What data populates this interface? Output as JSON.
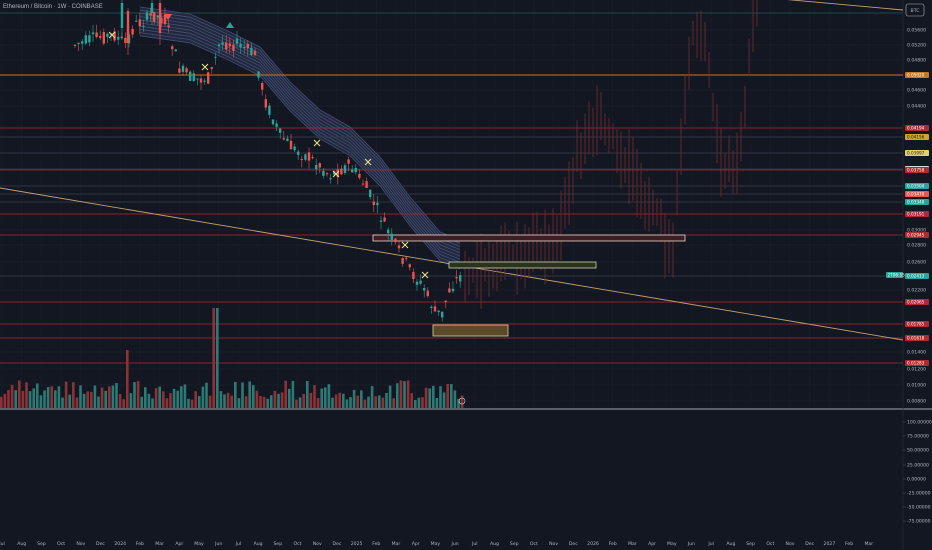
{
  "header": {
    "symbol": "Ethereum / Bitcoin · 1W · COINBASE"
  },
  "currency_badge": "BTC",
  "colors": {
    "up": "#26a69a",
    "down": "#ef5350",
    "level_red": "#b22833",
    "level_orange": "#c8781e",
    "trend": "#c2a072",
    "ribbon": "#5d6b9a",
    "bg": "#131722"
  },
  "chart_data": {
    "type": "candlestick",
    "log_scale": true,
    "y_ticks": [
      "0.05600",
      "0.05200",
      "0.04800",
      "0.04600",
      "0.04400",
      "0.03000",
      "0.02800",
      "0.02600",
      "0.02200",
      "0.01400",
      "0.01200",
      "0.01000",
      "0.00800"
    ],
    "x_ticks": [
      "Jul",
      "Aug",
      "Sep",
      "Oct",
      "Nov",
      "Dec",
      "2024",
      "Feb",
      "Mar",
      "Apr",
      "May",
      "Jun",
      "Jul",
      "Aug",
      "Sep",
      "Oct",
      "Nov",
      "Dec",
      "2025",
      "Feb",
      "Mar",
      "Apr",
      "May",
      "Jun",
      "Jul",
      "Aug",
      "Sep",
      "Oct",
      "Nov",
      "Dec",
      "2026",
      "Feb",
      "Mar",
      "Apr",
      "May",
      "Jun",
      "Jul",
      "Aug",
      "Sep",
      "Oct",
      "Nov",
      "Dec",
      "2027",
      "Feb",
      "Mar"
    ],
    "levels": [
      {
        "label": "0.05020",
        "color": "#c8781e"
      },
      {
        "label": "0.04194",
        "color": "#b22833"
      },
      {
        "label": "0.04156",
        "color": "#d0a52a"
      },
      {
        "label": "0.03997",
        "color": "#e3d06a"
      },
      {
        "label": "0.03790",
        "color": "#d9d9d9"
      },
      {
        "label": "0.03758",
        "color": "#b22833"
      },
      {
        "label": "0.03504",
        "color": "#26a69a"
      },
      {
        "label": "0.03470",
        "color": "#ef5350"
      },
      {
        "label": "0.03348",
        "color": "#26a69a"
      },
      {
        "label": "0.03191",
        "color": "#b22833"
      },
      {
        "label": "0.02945",
        "color": "#b22833"
      },
      {
        "label": "0.02413",
        "color": "#26a69a"
      },
      {
        "label": "0.02065",
        "color": "#b22833"
      },
      {
        "label": "0.01785",
        "color": "#b22833"
      },
      {
        "label": "0.01618",
        "color": "#b22833"
      },
      {
        "label": "0.01283",
        "color": "#b22833"
      }
    ],
    "current_price": {
      "label": "0.02413",
      "time_label": "2T06:55"
    },
    "osc_ticks": [
      "100.00000",
      "75.00000",
      "50.00000",
      "25.00000",
      "0.00000",
      "-25.00000",
      "-50.00000",
      "-75.00000"
    ]
  }
}
